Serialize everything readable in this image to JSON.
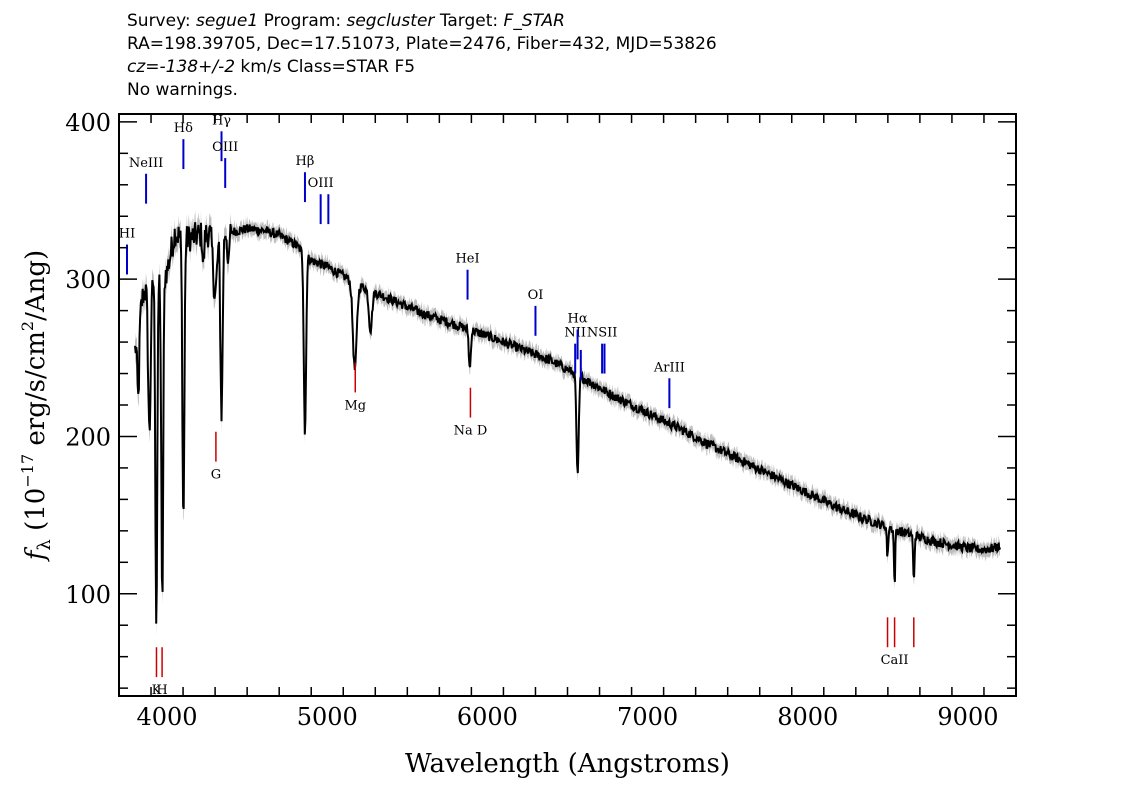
{
  "header": {
    "survey_label": "Survey:",
    "survey": "segue1",
    "program_label": "Program:",
    "program": "segcluster",
    "target_label": "Target:",
    "target": "F_STAR",
    "line2": "RA=198.39705, Dec=17.51073, Plate=2476, Fiber=432, MJD=53826",
    "cz_label": "cz=",
    "cz": "-138+/-2",
    "cz_rest": " km/s Class=STAR F5",
    "warnings": "No warnings."
  },
  "chart_data": {
    "type": "line",
    "xlabel": "Wavelength (Angstroms)",
    "ylabel_parts": {
      "f": "f",
      "sub": "λ",
      "pre": " (10",
      "exp1": "−17",
      "mid": " erg/s/cm",
      "exp2": "2",
      "post": "/Ang)"
    },
    "xlim": [
      3700,
      9300
    ],
    "ylim": [
      35,
      405
    ],
    "x_ticks": [
      4000,
      5000,
      6000,
      7000,
      8000,
      9000
    ],
    "y_ticks": [
      100,
      200,
      300,
      400
    ],
    "x_tick_labels": [
      "4000",
      "5000",
      "6000",
      "7000",
      "8000",
      "9000"
    ],
    "y_tick_labels": [
      "100",
      "200",
      "300",
      "400"
    ],
    "colors": {
      "spectrum": "#000000",
      "noise_band": "#bdbdbd",
      "emission": "#0000cc",
      "absorption": "#cc0000"
    },
    "continuum": [
      [
        3800,
        255
      ],
      [
        3850,
        290
      ],
      [
        3900,
        300
      ],
      [
        3950,
        302
      ],
      [
        4000,
        305
      ],
      [
        4050,
        330
      ],
      [
        4100,
        325
      ],
      [
        4200,
        328
      ],
      [
        4300,
        330
      ],
      [
        4400,
        330
      ],
      [
        4500,
        332
      ],
      [
        4600,
        331
      ],
      [
        4700,
        328
      ],
      [
        4800,
        322
      ],
      [
        4900,
        312
      ],
      [
        5000,
        308
      ],
      [
        5100,
        302
      ],
      [
        5200,
        296
      ],
      [
        5400,
        287
      ],
      [
        5600,
        278
      ],
      [
        5800,
        271
      ],
      [
        6000,
        264
      ],
      [
        6200,
        256
      ],
      [
        6400,
        248
      ],
      [
        6600,
        237
      ],
      [
        6800,
        225
      ],
      [
        7000,
        215
      ],
      [
        7200,
        205
      ],
      [
        7400,
        194
      ],
      [
        7600,
        184
      ],
      [
        7800,
        174
      ],
      [
        8000,
        164
      ],
      [
        8200,
        154
      ],
      [
        8400,
        146
      ],
      [
        8600,
        139
      ],
      [
        8800,
        133
      ],
      [
        9000,
        129
      ],
      [
        9100,
        128
      ],
      [
        9200,
        130
      ]
    ],
    "absorption_features": [
      [
        3820,
        45,
        6
      ],
      [
        3890,
        95,
        8
      ],
      [
        3933,
        220,
        6
      ],
      [
        3970,
        210,
        6
      ],
      [
        4102,
        180,
        6
      ],
      [
        4227,
        20,
        5
      ],
      [
        4300,
        40,
        12
      ],
      [
        4340,
        115,
        7
      ],
      [
        4383,
        25,
        5
      ],
      [
        4861,
        115,
        7
      ],
      [
        5172,
        55,
        12
      ],
      [
        5270,
        25,
        10
      ],
      [
        5890,
        25,
        6
      ],
      [
        6563,
        65,
        7
      ],
      [
        8498,
        20,
        4
      ],
      [
        8542,
        35,
        4
      ],
      [
        8662,
        30,
        4
      ]
    ],
    "emission_lines": [
      {
        "name": "HI",
        "x": 3750,
        "y_top": 322,
        "y_bottom": 303,
        "label": "HI"
      },
      {
        "name": "NeIII",
        "x": 3869,
        "y_top": 367,
        "y_bottom": 348,
        "label": "NeIII"
      },
      {
        "name": "Hdelta",
        "x": 4102,
        "y_top": 370,
        "y_bottom": 389,
        "label": "Hδ"
      },
      {
        "name": "Hgamma",
        "x": 4340,
        "y_top": 375,
        "y_bottom": 394,
        "label": "Hγ"
      },
      {
        "name": "OIII_4363",
        "x": 4363,
        "y_top": 358,
        "y_bottom": 377,
        "label": "OIII"
      },
      {
        "name": "Hbeta",
        "x": 4861,
        "y_top": 349,
        "y_bottom": 368,
        "label": "Hβ"
      },
      {
        "name": "OIII_4959",
        "x": 4959,
        "y_top": 335,
        "y_bottom": 354,
        "label": "OIII"
      },
      {
        "name": "OIII_5007",
        "x": 5007,
        "y_top": 335,
        "y_bottom": 354,
        "label": ""
      },
      {
        "name": "HeI",
        "x": 5876,
        "y_top": 287,
        "y_bottom": 306,
        "label": "HeI"
      },
      {
        "name": "OI",
        "x": 6300,
        "y_top": 264,
        "y_bottom": 283,
        "label": "OI"
      },
      {
        "name": "NII_6548",
        "x": 6548,
        "y_top": 240,
        "y_bottom": 259,
        "label": "NII"
      },
      {
        "name": "Halpha",
        "x": 6563,
        "y_top": 249,
        "y_bottom": 268,
        "label": "Hα"
      },
      {
        "name": "NII_6583",
        "x": 6583,
        "y_top": 236,
        "y_bottom": 255,
        "label": ""
      },
      {
        "name": "SII_6716",
        "x": 6716,
        "y_top": 240,
        "y_bottom": 259,
        "label": "NSII"
      },
      {
        "name": "SII_6731",
        "x": 6731,
        "y_top": 240,
        "y_bottom": 259,
        "label": ""
      },
      {
        "name": "ArIII",
        "x": 7136,
        "y_top": 218,
        "y_bottom": 237,
        "label": "ArIII"
      }
    ],
    "absorption_lines": [
      {
        "name": "K",
        "x": 3934,
        "y_top": 47,
        "y_bottom": 66,
        "label": "K"
      },
      {
        "name": "H",
        "x": 3969,
        "y_top": 47,
        "y_bottom": 66,
        "label": "H"
      },
      {
        "name": "G",
        "x": 4305,
        "y_top": 184,
        "y_bottom": 203,
        "label": "G"
      },
      {
        "name": "Mg",
        "x": 5175,
        "y_top": 228,
        "y_bottom": 247,
        "label": "Mg"
      },
      {
        "name": "NaD",
        "x": 5894,
        "y_top": 212,
        "y_bottom": 231,
        "label": "Na D"
      },
      {
        "name": "CaII_8498",
        "x": 8498,
        "y_top": 66,
        "y_bottom": 85,
        "label": ""
      },
      {
        "name": "CaII_8542",
        "x": 8542,
        "y_top": 66,
        "y_bottom": 85,
        "label": "CaII"
      },
      {
        "name": "CaII_8662",
        "x": 8662,
        "y_top": 66,
        "y_bottom": 85,
        "label": ""
      }
    ]
  }
}
